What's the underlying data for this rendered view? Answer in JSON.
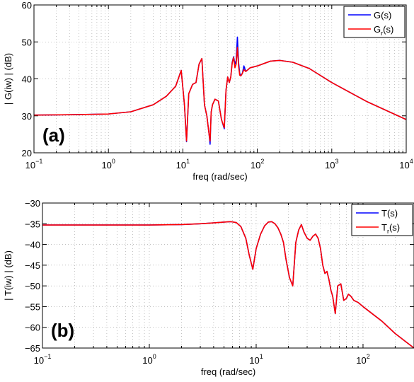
{
  "chart_data": [
    {
      "type": "line",
      "panel_label": "(a)",
      "xlabel": "freq (rad/sec)",
      "ylabel": "| G(iw) | (dB)",
      "xscale": "log",
      "xlim": [
        0.1,
        10000
      ],
      "ylim": [
        20,
        60
      ],
      "x_ticks": [
        0.1,
        1,
        10,
        100,
        1000,
        10000
      ],
      "x_tick_labels": [
        {
          "base": "10",
          "exp": "−1"
        },
        {
          "base": "10",
          "exp": "0"
        },
        {
          "base": "10",
          "exp": "1"
        },
        {
          "base": "10",
          "exp": "2"
        },
        {
          "base": "10",
          "exp": "3"
        },
        {
          "base": "10",
          "exp": "4"
        }
      ],
      "y_ticks": [
        20,
        30,
        40,
        50,
        60
      ],
      "y_tick_labels": [
        "20",
        "30",
        "40",
        "50",
        "60"
      ],
      "grid": true,
      "legend_position": "top-right",
      "series": [
        {
          "name": "G(s)",
          "legend_label": {
            "base": "G",
            "sub": "",
            "tail": "(s)"
          },
          "color": "#0000ff",
          "x": [
            0.1,
            0.3,
            1,
            2,
            4,
            6,
            8,
            9.5,
            10.5,
            11.2,
            12,
            13.5,
            15,
            16.5,
            18,
            19.5,
            21,
            22.5,
            23.2,
            24,
            25,
            27,
            30,
            33,
            36,
            38,
            40,
            42,
            44,
            46,
            48,
            50,
            52,
            54,
            56,
            58,
            60,
            63,
            66,
            70,
            80,
            100,
            150,
            200,
            300,
            500,
            1000,
            3000,
            10000
          ],
          "y": [
            30.2,
            30.3,
            30.5,
            31.1,
            33.0,
            35.3,
            38.0,
            42.3,
            33.0,
            23.0,
            36.0,
            38.5,
            39.0,
            44.0,
            45.5,
            33.0,
            30.0,
            25.0,
            22.3,
            31.0,
            33.0,
            34.5,
            34.0,
            29.0,
            26.5,
            37.0,
            40.5,
            39.0,
            40.5,
            44.5,
            46.0,
            44.0,
            45.0,
            51.3,
            44.5,
            41.5,
            40.8,
            41.5,
            43.5,
            42.0,
            43.0,
            43.5,
            44.8,
            45.0,
            44.5,
            42.8,
            39.0,
            33.8,
            29.0
          ]
        },
        {
          "name": "Gr(s)",
          "legend_label": {
            "base": "G",
            "sub": "r",
            "tail": "(s)"
          },
          "color": "#ff0000",
          "x": [
            0.1,
            0.3,
            1,
            2,
            4,
            6,
            8,
            9.5,
            10.5,
            11.2,
            12,
            13.5,
            15,
            16.5,
            18,
            19.5,
            21,
            22.5,
            23.2,
            24,
            25,
            27,
            30,
            33,
            36,
            38,
            40,
            42,
            44,
            46,
            48,
            50,
            52,
            54,
            56,
            58,
            60,
            63,
            66,
            70,
            80,
            100,
            150,
            200,
            300,
            500,
            1000,
            3000,
            10000
          ],
          "y": [
            30.2,
            30.3,
            30.5,
            31.1,
            33.0,
            35.3,
            38.0,
            42.3,
            33.0,
            23.2,
            36.0,
            38.5,
            39.0,
            44.0,
            45.5,
            33.0,
            30.0,
            25.0,
            23.2,
            31.0,
            33.0,
            34.5,
            34.0,
            29.0,
            26.8,
            37.0,
            40.5,
            39.0,
            40.5,
            44.3,
            45.8,
            43.0,
            44.0,
            48.5,
            43.5,
            41.0,
            40.8,
            41.5,
            42.5,
            42.0,
            43.0,
            43.5,
            44.8,
            45.0,
            44.5,
            42.8,
            39.0,
            33.8,
            29.0
          ]
        }
      ]
    },
    {
      "type": "line",
      "panel_label": "(b)",
      "xlabel": "freq (rad/sec)",
      "ylabel": "| T(iw) | (dB)",
      "xscale": "log",
      "xlim": [
        0.1,
        300
      ],
      "ylim": [
        -65,
        -30
      ],
      "x_ticks": [
        0.1,
        1,
        10,
        100
      ],
      "x_tick_labels": [
        {
          "base": "10",
          "exp": "−1"
        },
        {
          "base": "10",
          "exp": "0"
        },
        {
          "base": "10",
          "exp": "1"
        },
        {
          "base": "10",
          "exp": "2"
        }
      ],
      "y_ticks": [
        -65,
        -60,
        -55,
        -50,
        -45,
        -40,
        -35,
        -30
      ],
      "y_tick_labels": [
        "−65",
        "−60",
        "−55",
        "−50",
        "−45",
        "−40",
        "−35",
        "−30"
      ],
      "grid": true,
      "legend_position": "top-right",
      "series": [
        {
          "name": "T(s)",
          "legend_label": {
            "base": "T",
            "sub": "",
            "tail": "(s)"
          },
          "color": "#0000ff",
          "x": [
            0.1,
            0.3,
            1,
            2,
            3,
            4,
            5,
            5.8,
            6.5,
            7.2,
            8,
            8.6,
            9.3,
            10,
            11,
            12,
            13,
            14,
            15,
            16,
            17,
            18,
            19,
            20.5,
            22,
            23.5,
            25,
            26.5,
            28,
            30,
            32,
            34,
            36,
            38,
            40,
            42,
            44,
            46,
            48,
            50,
            52,
            55,
            58,
            62,
            66,
            70,
            73,
            77,
            82,
            90,
            100,
            150,
            200,
            300
          ],
          "y": [
            -35.3,
            -35.3,
            -35.3,
            -35.2,
            -35.0,
            -34.8,
            -34.6,
            -34.5,
            -34.7,
            -35.7,
            -38.5,
            -42.5,
            -46.0,
            -41.0,
            -37.5,
            -35.5,
            -34.6,
            -34.5,
            -35.0,
            -36.0,
            -37.5,
            -39.5,
            -43.5,
            -48.0,
            -50.0,
            -39.5,
            -36.5,
            -35.2,
            -37.0,
            -38.5,
            -39.0,
            -38.0,
            -37.5,
            -38.5,
            -41.0,
            -45.0,
            -47.0,
            -46.5,
            -48.5,
            -51.0,
            -52.5,
            -56.7,
            -50.0,
            -49.5,
            -53.5,
            -53.0,
            -52.0,
            -52.5,
            -53.5,
            -54.0,
            -55.0,
            -58.5,
            -61.5,
            -65.0
          ]
        },
        {
          "name": "Tr(s)",
          "legend_label": {
            "base": "T",
            "sub": "r",
            "tail": "(s)"
          },
          "color": "#ff0000",
          "x": [
            0.1,
            0.3,
            1,
            2,
            3,
            4,
            5,
            5.8,
            6.5,
            7.2,
            8,
            8.6,
            9.3,
            10,
            11,
            12,
            13,
            14,
            15,
            16,
            17,
            18,
            19,
            20.5,
            22,
            23.5,
            25,
            26.5,
            28,
            30,
            32,
            34,
            36,
            38,
            40,
            42,
            44,
            46,
            48,
            50,
            52,
            55,
            58,
            62,
            66,
            70,
            73,
            77,
            82,
            90,
            100,
            150,
            200,
            300
          ],
          "y": [
            -35.3,
            -35.3,
            -35.3,
            -35.2,
            -35.0,
            -34.8,
            -34.6,
            -34.5,
            -34.7,
            -35.7,
            -38.5,
            -42.5,
            -46.0,
            -41.0,
            -37.5,
            -35.5,
            -34.6,
            -34.5,
            -35.0,
            -36.0,
            -37.5,
            -39.5,
            -43.5,
            -48.0,
            -50.0,
            -39.5,
            -36.5,
            -35.2,
            -37.0,
            -38.5,
            -39.0,
            -38.0,
            -37.5,
            -38.5,
            -41.0,
            -45.0,
            -47.0,
            -46.5,
            -48.5,
            -51.0,
            -52.5,
            -56.7,
            -50.0,
            -49.5,
            -53.5,
            -53.0,
            -52.0,
            -52.5,
            -53.5,
            -54.0,
            -55.0,
            -58.5,
            -61.5,
            -65.0
          ]
        }
      ]
    }
  ]
}
